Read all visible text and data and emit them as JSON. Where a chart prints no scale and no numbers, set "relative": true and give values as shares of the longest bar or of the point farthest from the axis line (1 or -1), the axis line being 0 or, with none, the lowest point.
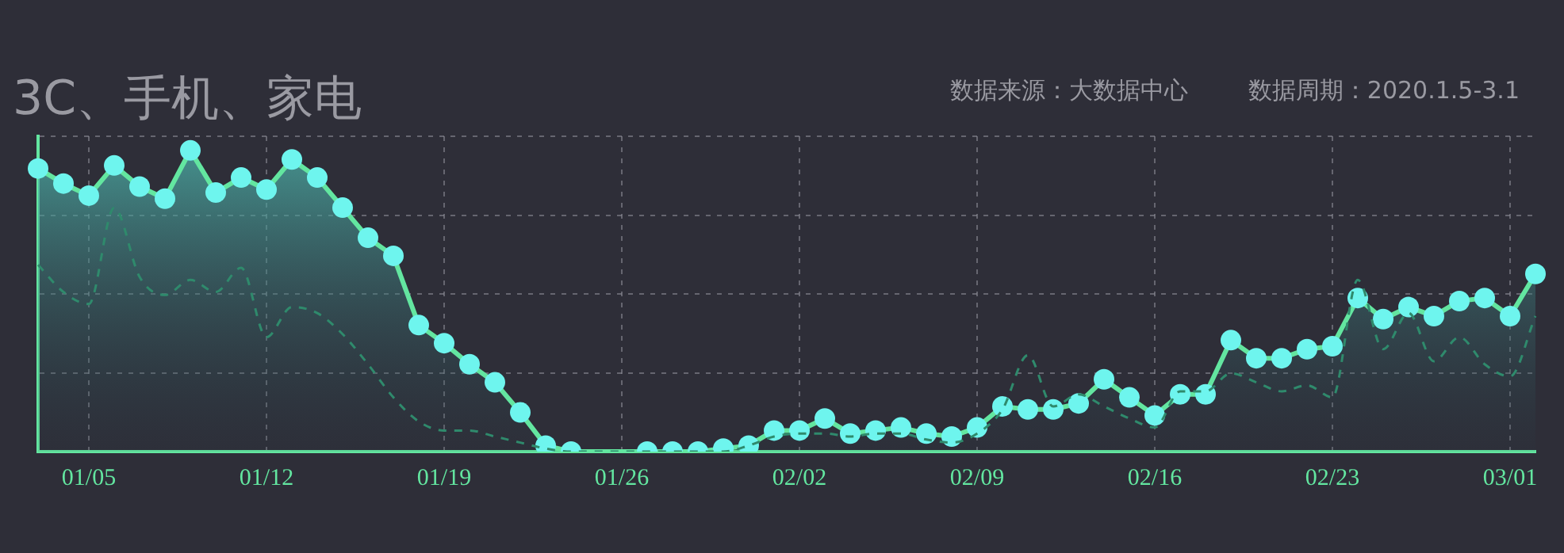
{
  "chart_data": {
    "type": "area",
    "title": "3C、手机、家电",
    "subtitle": "数据周期：2020.1.5-3.1",
    "annotations": [
      "数据来源：大数据中心"
    ],
    "categories": [
      null,
      null,
      "01/05",
      null,
      null,
      null,
      null,
      null,
      null,
      "01/12",
      null,
      null,
      null,
      null,
      null,
      null,
      "01/19",
      null,
      null,
      null,
      null,
      null,
      null,
      "01/26",
      null,
      null,
      null,
      null,
      null,
      null,
      "02/02",
      null,
      null,
      null,
      null,
      null,
      null,
      "02/09",
      null,
      null,
      null,
      null,
      null,
      null,
      "02/16",
      null,
      null,
      null,
      null,
      null,
      null,
      "02/23",
      null,
      null,
      null,
      null,
      null,
      null,
      "03/01",
      null
    ],
    "relative": true,
    "grid": true,
    "legend": false,
    "series": [
      {
        "type": "area",
        "color": "#63e6a0",
        "marker": "circle",
        "line_style": "solid",
        "values": [
          0.94,
          0.89,
          0.85,
          0.95,
          0.88,
          0.84,
          1,
          0.86,
          0.91,
          0.87,
          0.97,
          0.91,
          0.81,
          0.71,
          0.65,
          0.42,
          0.36,
          0.29,
          0.23,
          0.13,
          0.02,
          0,
          null,
          null,
          0,
          0,
          0,
          0.01,
          0.02,
          0.07,
          0.07,
          0.11,
          0.06,
          0.07,
          0.08,
          0.06,
          0.05,
          0.08,
          0.15,
          0.14,
          0.14,
          0.16,
          0.24,
          0.18,
          0.12,
          0.19,
          0.19,
          0.37,
          0.31,
          0.31,
          0.34,
          0.35,
          0.51,
          0.44,
          0.48,
          0.45,
          0.5,
          0.51,
          0.45,
          0.59
        ]
      },
      {
        "type": "line",
        "color": "#2f8a6c",
        "marker": "none",
        "line_style": "dashed",
        "values": [
          0.62,
          0.53,
          0.49,
          0.81,
          0.58,
          0.52,
          0.57,
          0.53,
          0.61,
          0.38,
          0.48,
          0.46,
          0.39,
          0.29,
          0.18,
          0.1,
          0.07,
          0.07,
          0.05,
          0.03,
          0.01,
          0,
          0,
          0,
          0,
          0,
          0,
          0,
          0.02,
          0.05,
          0.06,
          0.06,
          0.05,
          0.06,
          0.06,
          0.04,
          0.03,
          0.06,
          0.14,
          0.32,
          0.15,
          0.19,
          0.15,
          0.11,
          0.08,
          0.2,
          0.2,
          0.26,
          0.23,
          0.2,
          0.22,
          0.18,
          0.57,
          0.34,
          0.46,
          0.3,
          0.38,
          0.29,
          0.25,
          0.45
        ]
      }
    ]
  }
}
